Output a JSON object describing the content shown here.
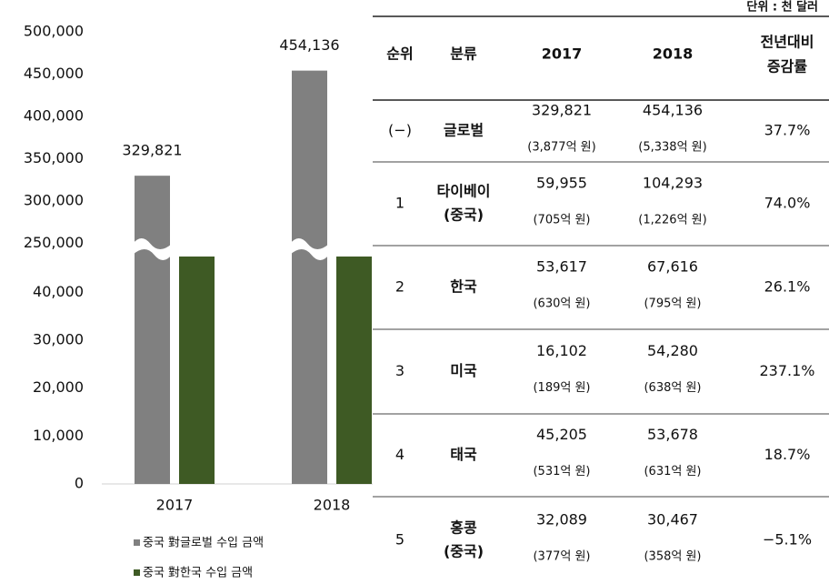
{
  "chart_data": {
    "type": "bar",
    "categories": [
      "2017",
      "2018"
    ],
    "series": [
      {
        "name": "중국 對글로벌 수입 금액",
        "color": "#808080",
        "values": [
          329821,
          454136
        ],
        "value_labels": [
          "329,821",
          "454,136"
        ]
      },
      {
        "name": "중국 對한국 수입 금액",
        "color": "#3e5a24",
        "values": [
          53617,
          67616
        ]
      }
    ],
    "ylim": [
      0,
      500000
    ],
    "axis_break": [
      47500,
      245000
    ],
    "yticks": [
      {
        "value": 0,
        "label": "0"
      },
      {
        "value": 10000,
        "label": "10,000"
      },
      {
        "value": 20000,
        "label": "20,000"
      },
      {
        "value": 30000,
        "label": "30,000"
      },
      {
        "value": 40000,
        "label": "40,000"
      },
      {
        "value": 250000,
        "label": "250,000"
      },
      {
        "value": 300000,
        "label": "300,000"
      },
      {
        "value": 350000,
        "label": "350,000"
      },
      {
        "value": 400000,
        "label": "400,000"
      },
      {
        "value": 450000,
        "label": "450,000"
      },
      {
        "value": 500000,
        "label": "500,000"
      }
    ]
  },
  "table": {
    "unit": "단위 : 천 달러",
    "header": [
      "순위",
      "분류",
      "2017",
      "2018",
      [
        "전년대비",
        "증감률"
      ]
    ],
    "rows": [
      {
        "rank": "(−)",
        "name": [
          "글로벌"
        ],
        "v2017": "329,821",
        "w2017": "(3,877억 원)",
        "v2018": "454,136",
        "w2018": "(5,338억 원)",
        "change": "37.7%"
      },
      {
        "rank": "1",
        "name": [
          "타이베이",
          "(중국)"
        ],
        "v2017": "59,955",
        "w2017": "(705억 원)",
        "v2018": "104,293",
        "w2018": "(1,226억 원)",
        "change": "74.0%"
      },
      {
        "rank": "2",
        "name": [
          "한국"
        ],
        "v2017": "53,617",
        "w2017": "(630억 원)",
        "v2018": "67,616",
        "w2018": "(795억 원)",
        "change": "26.1%"
      },
      {
        "rank": "3",
        "name": [
          "미국"
        ],
        "v2017": "16,102",
        "w2017": "(189억 원)",
        "v2018": "54,280",
        "w2018": "(638억 원)",
        "change": "237.1%"
      },
      {
        "rank": "4",
        "name": [
          "태국"
        ],
        "v2017": "45,205",
        "w2017": "(531억 원)",
        "v2018": "53,678",
        "w2018": "(631억 원)",
        "change": "18.7%"
      },
      {
        "rank": "5",
        "name": [
          "홍콩",
          "(중국)"
        ],
        "v2017": "32,089",
        "w2017": "(377억 원)",
        "v2018": "30,467",
        "w2018": "(358억 원)",
        "change": "−5.1%"
      }
    ]
  }
}
